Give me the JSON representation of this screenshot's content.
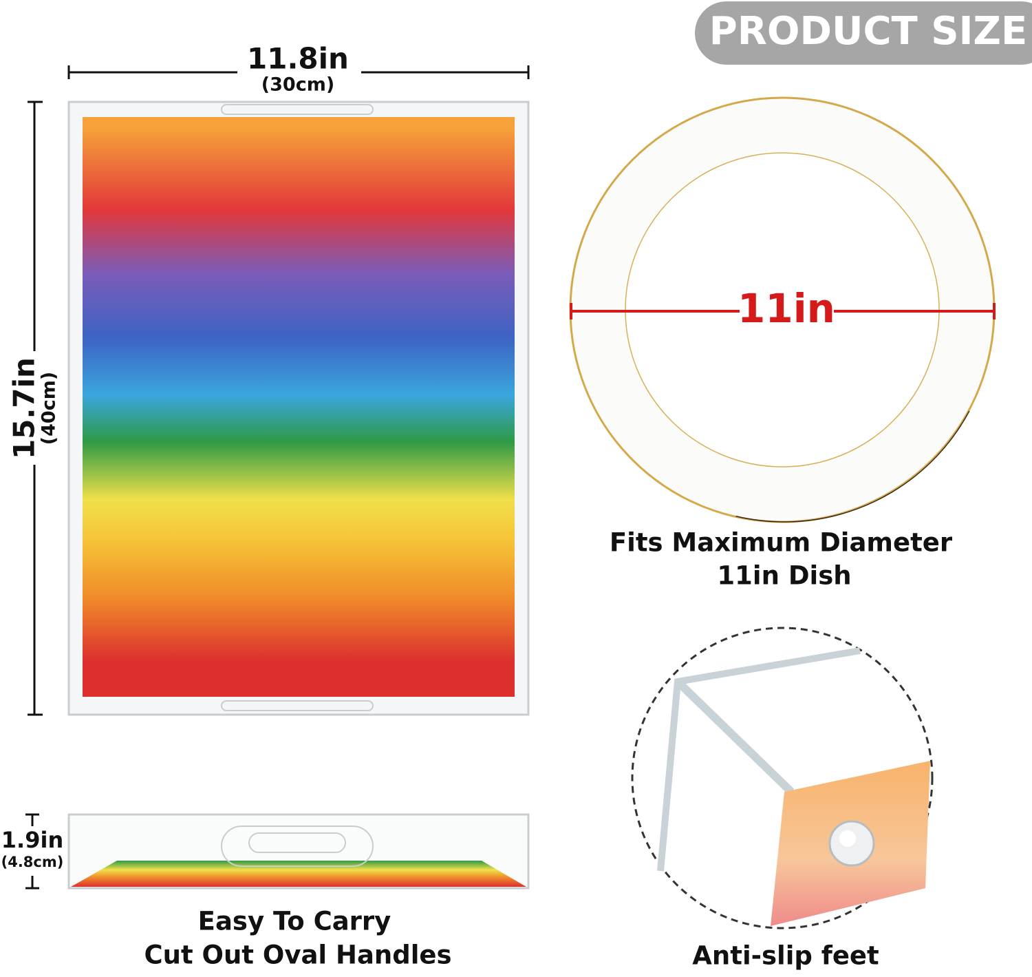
{
  "badge": {
    "text": "PRODUCT SIZE"
  },
  "tray_top": {
    "width": "11.8in",
    "width_cm": "(30cm)",
    "length": "15.7in",
    "length_cm": "(40cm)"
  },
  "plate": {
    "diameter": "11in",
    "caption": [
      "Fits Maximum Diameter",
      "11in Dish"
    ]
  },
  "tray_side": {
    "height": "1.9in",
    "height_cm": "(4.8cm)",
    "caption": [
      "Easy To Carry",
      "Cut Out Oval Handles"
    ]
  },
  "feet": {
    "caption": "Anti-slip feet"
  }
}
